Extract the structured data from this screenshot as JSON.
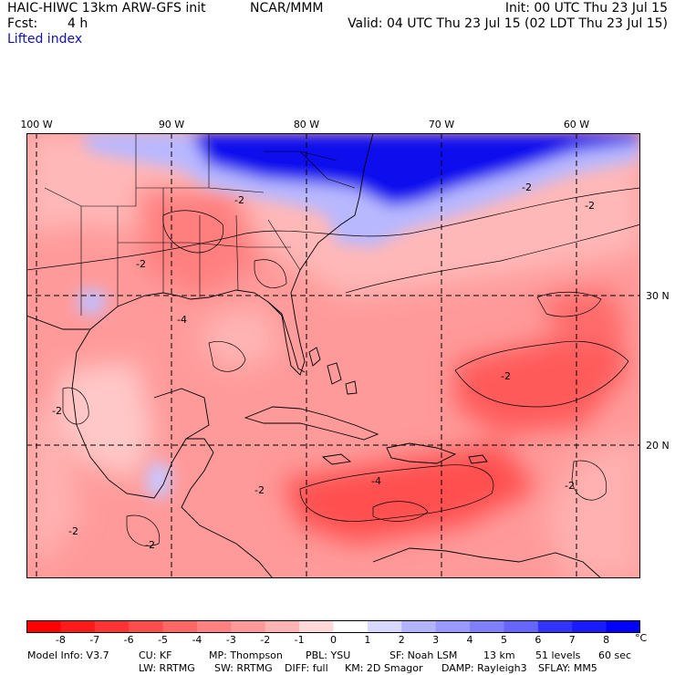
{
  "header": {
    "model": "HAIC-HIWC 13km ARW-GFS init",
    "org": "NCAR/MMM",
    "init": "Init: 00 UTC Thu 23 Jul 15",
    "fcst_label": "Fcst:",
    "fcst_value": "4 h",
    "valid": "Valid: 04 UTC Thu 23 Jul 15 (02 LDT Thu 23 Jul 15)",
    "variable": "Lifted index"
  },
  "map": {
    "lon_labels": [
      "100 W",
      "90 W",
      "80 W",
      "70 W",
      "60 W"
    ],
    "lat_labels": [
      "30 N",
      "20 N"
    ],
    "contour_labels": [
      "-2",
      "-2",
      "-2",
      "-2",
      "-2",
      "-2",
      "-4",
      "-4",
      "-2",
      "-2",
      "-2",
      "-2"
    ]
  },
  "colorbar": {
    "ticks": [
      "-8",
      "-7",
      "-6",
      "-5",
      "-4",
      "-3",
      "-2",
      "-1",
      "0",
      "1",
      "2",
      "3",
      "4",
      "5",
      "6",
      "7",
      "8"
    ],
    "unit": "°C",
    "colors": [
      "#ff0000",
      "#ff1a1a",
      "#ff3333",
      "#ff4d4d",
      "#ff6666",
      "#ff8080",
      "#ff9999",
      "#ffb3b3",
      "#ffd9d9",
      "#ffffff",
      "#d9d9ff",
      "#b3b3ff",
      "#9999ff",
      "#8080ff",
      "#6666ff",
      "#3333ff",
      "#1a1aff",
      "#0000ff"
    ]
  },
  "model_info": {
    "line1": [
      "Model Info: V3.7",
      "CU: KF",
      "MP: Thompson",
      "PBL: YSU",
      "SF: Noah LSM",
      "13 km",
      "51 levels",
      "60 sec"
    ],
    "line2": [
      "LW: RRTMG",
      "SW: RRTMG",
      "DIFF: full",
      "KM: 2D Smagor",
      "DAMP: Rayleigh3",
      "SFLAY: MM5"
    ]
  }
}
